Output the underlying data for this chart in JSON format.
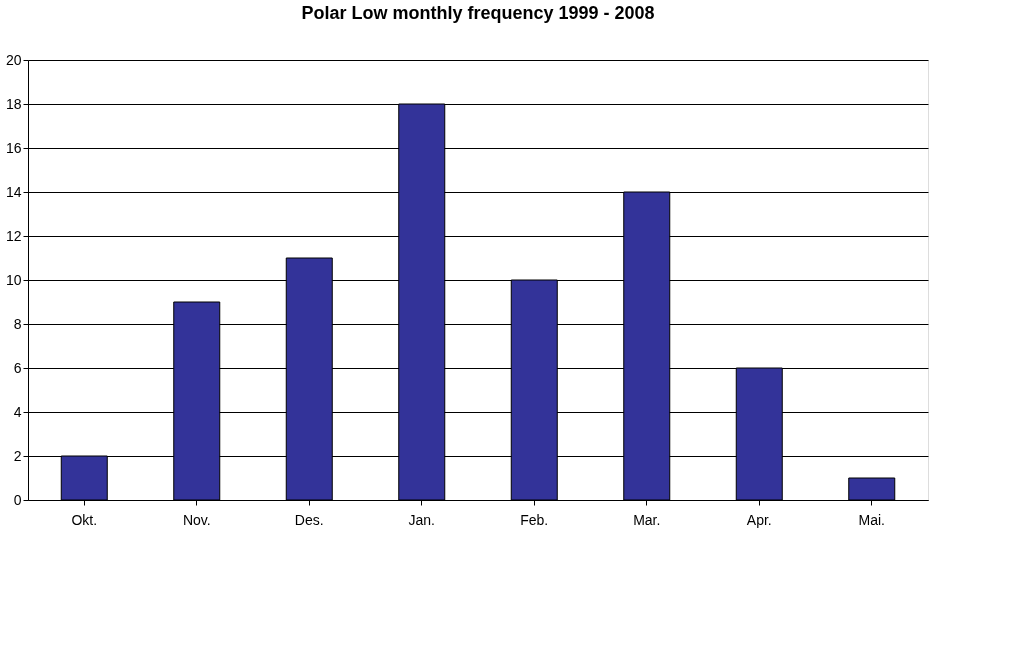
{
  "chart_data": {
    "type": "bar",
    "title": "Polar Low monthly frequency 1999 - 2008",
    "categories": [
      "Okt.",
      "Nov.",
      "Des.",
      "Jan.",
      "Feb.",
      "Mar.",
      "Apr.",
      "Mai."
    ],
    "values": [
      2,
      9,
      11,
      18,
      10,
      14,
      6,
      1
    ],
    "color": "#333399",
    "ylim": [
      0,
      20
    ],
    "yticks": [
      0,
      2,
      4,
      6,
      8,
      10,
      12,
      14,
      16,
      18,
      20
    ],
    "grid": "y"
  }
}
